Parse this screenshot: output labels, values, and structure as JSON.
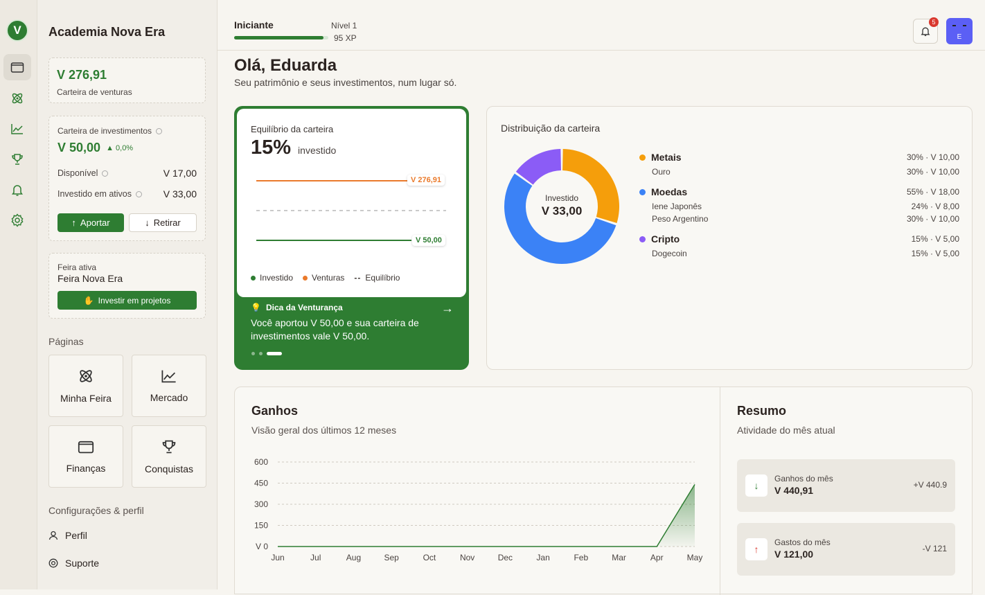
{
  "app": {
    "logo_letter": "V",
    "name": "Academia Nova Era"
  },
  "wallet": {
    "ventures_amount": "V 276,91",
    "ventures_label": "Carteira de venturas"
  },
  "investments": {
    "label": "Carteira de investimentos",
    "amount": "V 50,00",
    "change": "0,0%",
    "available_label": "Disponível",
    "available_value": "V 17,00",
    "invested_label": "Investido em ativos",
    "invested_value": "V 33,00",
    "deposit_button": "Aportar",
    "withdraw_button": "Retirar"
  },
  "fair": {
    "label": "Feira ativa",
    "name": "Feira Nova Era",
    "invest_button": "Investir em projetos"
  },
  "pages": {
    "title": "Páginas",
    "items": [
      {
        "label": "Minha Feira",
        "icon": "atom-icon"
      },
      {
        "label": "Mercado",
        "icon": "chart-icon"
      },
      {
        "label": "Finanças",
        "icon": "wallet-icon"
      },
      {
        "label": "Conquistas",
        "icon": "trophy-icon"
      }
    ]
  },
  "settings": {
    "title": "Configurações & perfil",
    "profile": "Perfil",
    "support": "Suporte"
  },
  "level": {
    "name": "Iniciante",
    "level": "Nível 1",
    "xp": "95 XP",
    "progress": 0.95
  },
  "notifications": {
    "count": "5"
  },
  "avatar": {
    "letter": "E",
    "color": "#5b5ff5"
  },
  "greeting": {
    "title": "Olá, Eduarda",
    "subtitle": "Seu patrimônio e seus investimentos, num lugar só."
  },
  "balance": {
    "title": "Equilíbrio da carteira",
    "percent": "15%",
    "percent_label": "investido",
    "ventures_tag": "V 276,91",
    "invested_tag": "V 50,00",
    "legend": {
      "invested": "Investido",
      "ventures": "Venturas",
      "balance": "Equilíbrio"
    },
    "tip_title": "Dica da Venturança",
    "tip_text": "Você aportou V 50,00 e sua carteira de investimentos vale V 50,00."
  },
  "distribution": {
    "title": "Distribuição da carteira",
    "center_label": "Investido",
    "center_value": "V 33,00",
    "groups": [
      {
        "name": "Metais",
        "color": "#f59e0b",
        "value": "30% · V 10,00",
        "share": 30,
        "items": [
          {
            "name": "Ouro",
            "value": "30% · V 10,00"
          }
        ]
      },
      {
        "name": "Moedas",
        "color": "#3b82f6",
        "value": "55% · V 18,00",
        "share": 55,
        "items": [
          {
            "name": "Iene Japonês",
            "value": "24% · V 8,00"
          },
          {
            "name": "Peso Argentino",
            "value": "30% · V 10,00"
          }
        ]
      },
      {
        "name": "Cripto",
        "color": "#8b5cf6",
        "value": "15% · V 5,00",
        "share": 15,
        "items": [
          {
            "name": "Dogecoin",
            "value": "15% · V 5,00"
          }
        ]
      }
    ]
  },
  "earnings": {
    "title": "Ganhos",
    "subtitle": "Visão geral dos últimos 12 meses"
  },
  "chart_data": {
    "type": "area",
    "categories": [
      "Jun",
      "Jul",
      "Aug",
      "Sep",
      "Oct",
      "Nov",
      "Dec",
      "Jan",
      "Feb",
      "Mar",
      "Apr",
      "May"
    ],
    "series": [
      {
        "values": [
          0,
          0,
          0,
          0,
          0,
          0,
          0,
          0,
          0,
          0,
          0,
          440.91
        ]
      }
    ],
    "yticks": [
      "V 0",
      "150",
      "300",
      "450",
      "600"
    ],
    "ylim": [
      0,
      600
    ],
    "grid": true,
    "color": "#2e7d32"
  },
  "summary": {
    "title": "Resumo",
    "subtitle": "Atividade do mês atual",
    "income_label": "Ganhos do mês",
    "income_value": "V 440,91",
    "income_delta": "+V 440.9",
    "expense_label": "Gastos do mês",
    "expense_value": "V 121,00",
    "expense_delta": "-V 121"
  }
}
